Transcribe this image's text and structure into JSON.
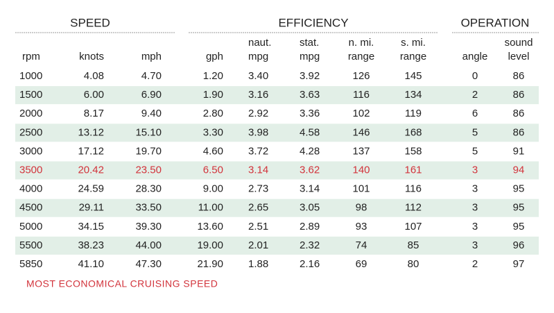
{
  "groups": [
    "SPEED",
    "EFFICIENCY",
    "OPERATION"
  ],
  "columns": [
    [
      "rpm"
    ],
    [
      "knots"
    ],
    [
      "mph"
    ],
    [
      "gph"
    ],
    [
      "naut.",
      "mpg"
    ],
    [
      "stat.",
      "mpg"
    ],
    [
      "n. mi.",
      "range"
    ],
    [
      "s. mi.",
      "range"
    ],
    [
      "angle"
    ],
    [
      "sound",
      "level"
    ]
  ],
  "rows": [
    [
      "1000",
      "4.08",
      "4.70",
      "1.20",
      "3.40",
      "3.92",
      "126",
      "145",
      "0",
      "86"
    ],
    [
      "1500",
      "6.00",
      "6.90",
      "1.90",
      "3.16",
      "3.63",
      "116",
      "134",
      "2",
      "86"
    ],
    [
      "2000",
      "8.17",
      "9.40",
      "2.80",
      "2.92",
      "3.36",
      "102",
      "119",
      "6",
      "86"
    ],
    [
      "2500",
      "13.12",
      "15.10",
      "3.30",
      "3.98",
      "4.58",
      "146",
      "168",
      "5",
      "86"
    ],
    [
      "3000",
      "17.12",
      "19.70",
      "4.60",
      "3.72",
      "4.28",
      "137",
      "158",
      "5",
      "91"
    ],
    [
      "3500",
      "20.42",
      "23.50",
      "6.50",
      "3.14",
      "3.62",
      "140",
      "161",
      "3",
      "94"
    ],
    [
      "4000",
      "24.59",
      "28.30",
      "9.00",
      "2.73",
      "3.14",
      "101",
      "116",
      "3",
      "95"
    ],
    [
      "4500",
      "29.11",
      "33.50",
      "11.00",
      "2.65",
      "3.05",
      "98",
      "112",
      "3",
      "95"
    ],
    [
      "5000",
      "34.15",
      "39.30",
      "13.60",
      "2.51",
      "2.89",
      "93",
      "107",
      "3",
      "95"
    ],
    [
      "5500",
      "38.23",
      "44.00",
      "19.00",
      "2.01",
      "2.32",
      "74",
      "85",
      "3",
      "96"
    ],
    [
      "5850",
      "41.10",
      "47.30",
      "21.90",
      "1.88",
      "2.16",
      "69",
      "80",
      "2",
      "97"
    ]
  ],
  "highlight_row": 5,
  "highlight_color": "#d2333b",
  "stripe_color": "#e2efe7",
  "footnote": "MOST ECONOMICAL CRUISING SPEED"
}
